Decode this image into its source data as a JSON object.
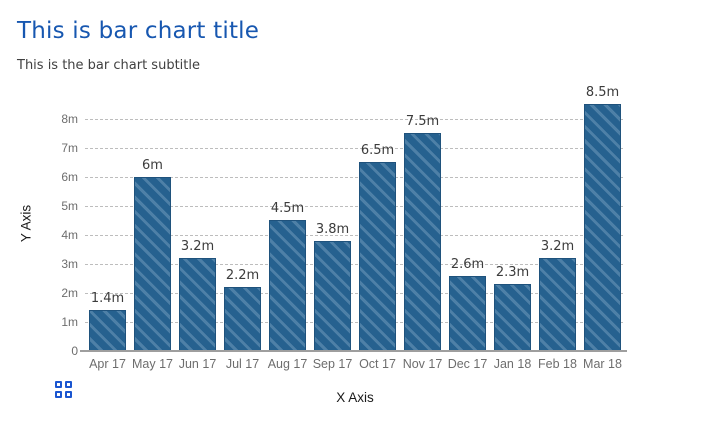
{
  "header": {
    "title": "This is bar chart title",
    "subtitle": "This is the bar chart subtitle"
  },
  "chart_data": {
    "type": "bar",
    "title": "This is bar chart title",
    "subtitle": "This is the bar chart subtitle",
    "xlabel": "X Axis",
    "ylabel": "Y Axis",
    "categories": [
      "Apr 17",
      "May 17",
      "Jun 17",
      "Jul 17",
      "Aug 17",
      "Sep 17",
      "Oct 17",
      "Nov 17",
      "Dec 17",
      "Jan 18",
      "Feb 18",
      "Mar 18"
    ],
    "values": [
      1.4,
      6,
      3.2,
      2.2,
      4.5,
      3.8,
      6.5,
      7.5,
      2.6,
      2.3,
      3.2,
      8.5
    ],
    "value_labels": [
      "1.4m",
      "6m",
      "3.2m",
      "2.2m",
      "4.5m",
      "3.8m",
      "6.5m",
      "7.5m",
      "2.6m",
      "2.3m",
      "3.2m",
      "8.5m"
    ],
    "y_ticks": [
      {
        "value": 0,
        "label": "0"
      },
      {
        "value": 1,
        "label": "1m"
      },
      {
        "value": 2,
        "label": "2m"
      },
      {
        "value": 3,
        "label": "3m"
      },
      {
        "value": 4,
        "label": "4m"
      },
      {
        "value": 5,
        "label": "5m"
      },
      {
        "value": 6,
        "label": "6m"
      },
      {
        "value": 7,
        "label": "7m"
      },
      {
        "value": 8,
        "label": "8m"
      }
    ],
    "ylim": [
      0,
      8.8
    ],
    "grid": "horizontal-dashed",
    "legend": "none",
    "colors": {
      "bar_fill": "#26618f",
      "bar_stripe": "#4e80a7",
      "title": "#1757b0",
      "gridline": "#bdbdbd",
      "axis_line": "#9e9e9e",
      "tick_label": "#6d6d6d",
      "value_label": "#3c3c3c"
    }
  },
  "footer": {
    "menu_icon": "grid-2x2-icon",
    "menu_icon_color": "#1a55d0"
  }
}
